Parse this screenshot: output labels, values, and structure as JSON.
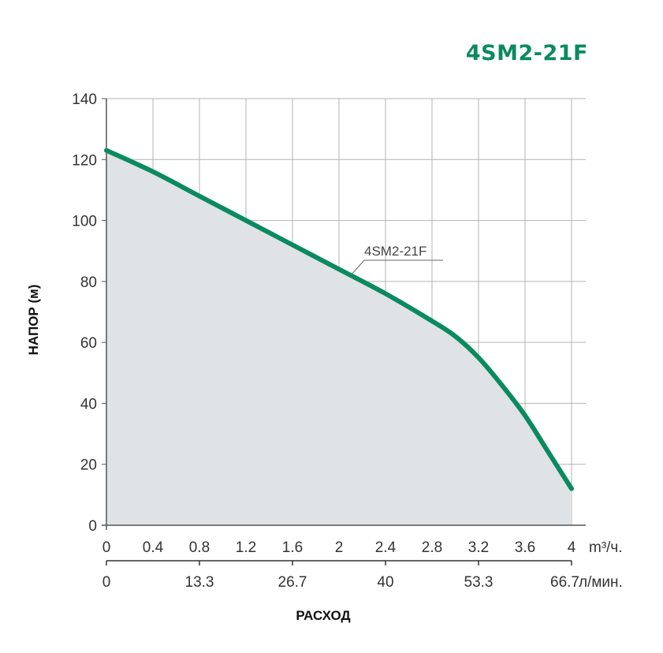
{
  "chart_data": {
    "type": "area",
    "title": "4SM2-21F",
    "ylabel": "НАПОР (м)",
    "xlabel": "РАСХОД",
    "ylim": [
      0,
      140
    ],
    "xlim": [
      0,
      4
    ],
    "y_ticks": [
      "0",
      "20",
      "40",
      "60",
      "80",
      "100",
      "120",
      "140"
    ],
    "x_ticks": [
      "0",
      "0.4",
      "0.8",
      "1.2",
      "1.6",
      "2",
      "2.4",
      "2.8",
      "3.2",
      "3.6",
      "4"
    ],
    "x_unit": "m³/ч.",
    "x2_ticks": [
      {
        "x": 0,
        "label": "0"
      },
      {
        "x": 0.8,
        "label": "13.3"
      },
      {
        "x": 1.6,
        "label": "26.7"
      },
      {
        "x": 2.4,
        "label": "40"
      },
      {
        "x": 3.2,
        "label": "53.3"
      },
      {
        "x": 4.0,
        "label": "66.7"
      }
    ],
    "x2_unit": "л/мин.",
    "grid": true,
    "series": [
      {
        "name": "4SM2-21F",
        "x": [
          0,
          0.4,
          0.8,
          1.2,
          1.6,
          2.0,
          2.4,
          2.8,
          3.0,
          3.2,
          3.4,
          3.6,
          3.8,
          4.0
        ],
        "y": [
          123,
          116,
          108,
          100,
          92,
          84,
          76,
          67,
          62,
          55,
          46,
          36,
          24,
          12
        ]
      }
    ],
    "colors": {
      "line": "#0a8a5f",
      "fill": "#dfe3e6",
      "grid": "#b3b3b3",
      "title": "#0a8a5f"
    }
  }
}
